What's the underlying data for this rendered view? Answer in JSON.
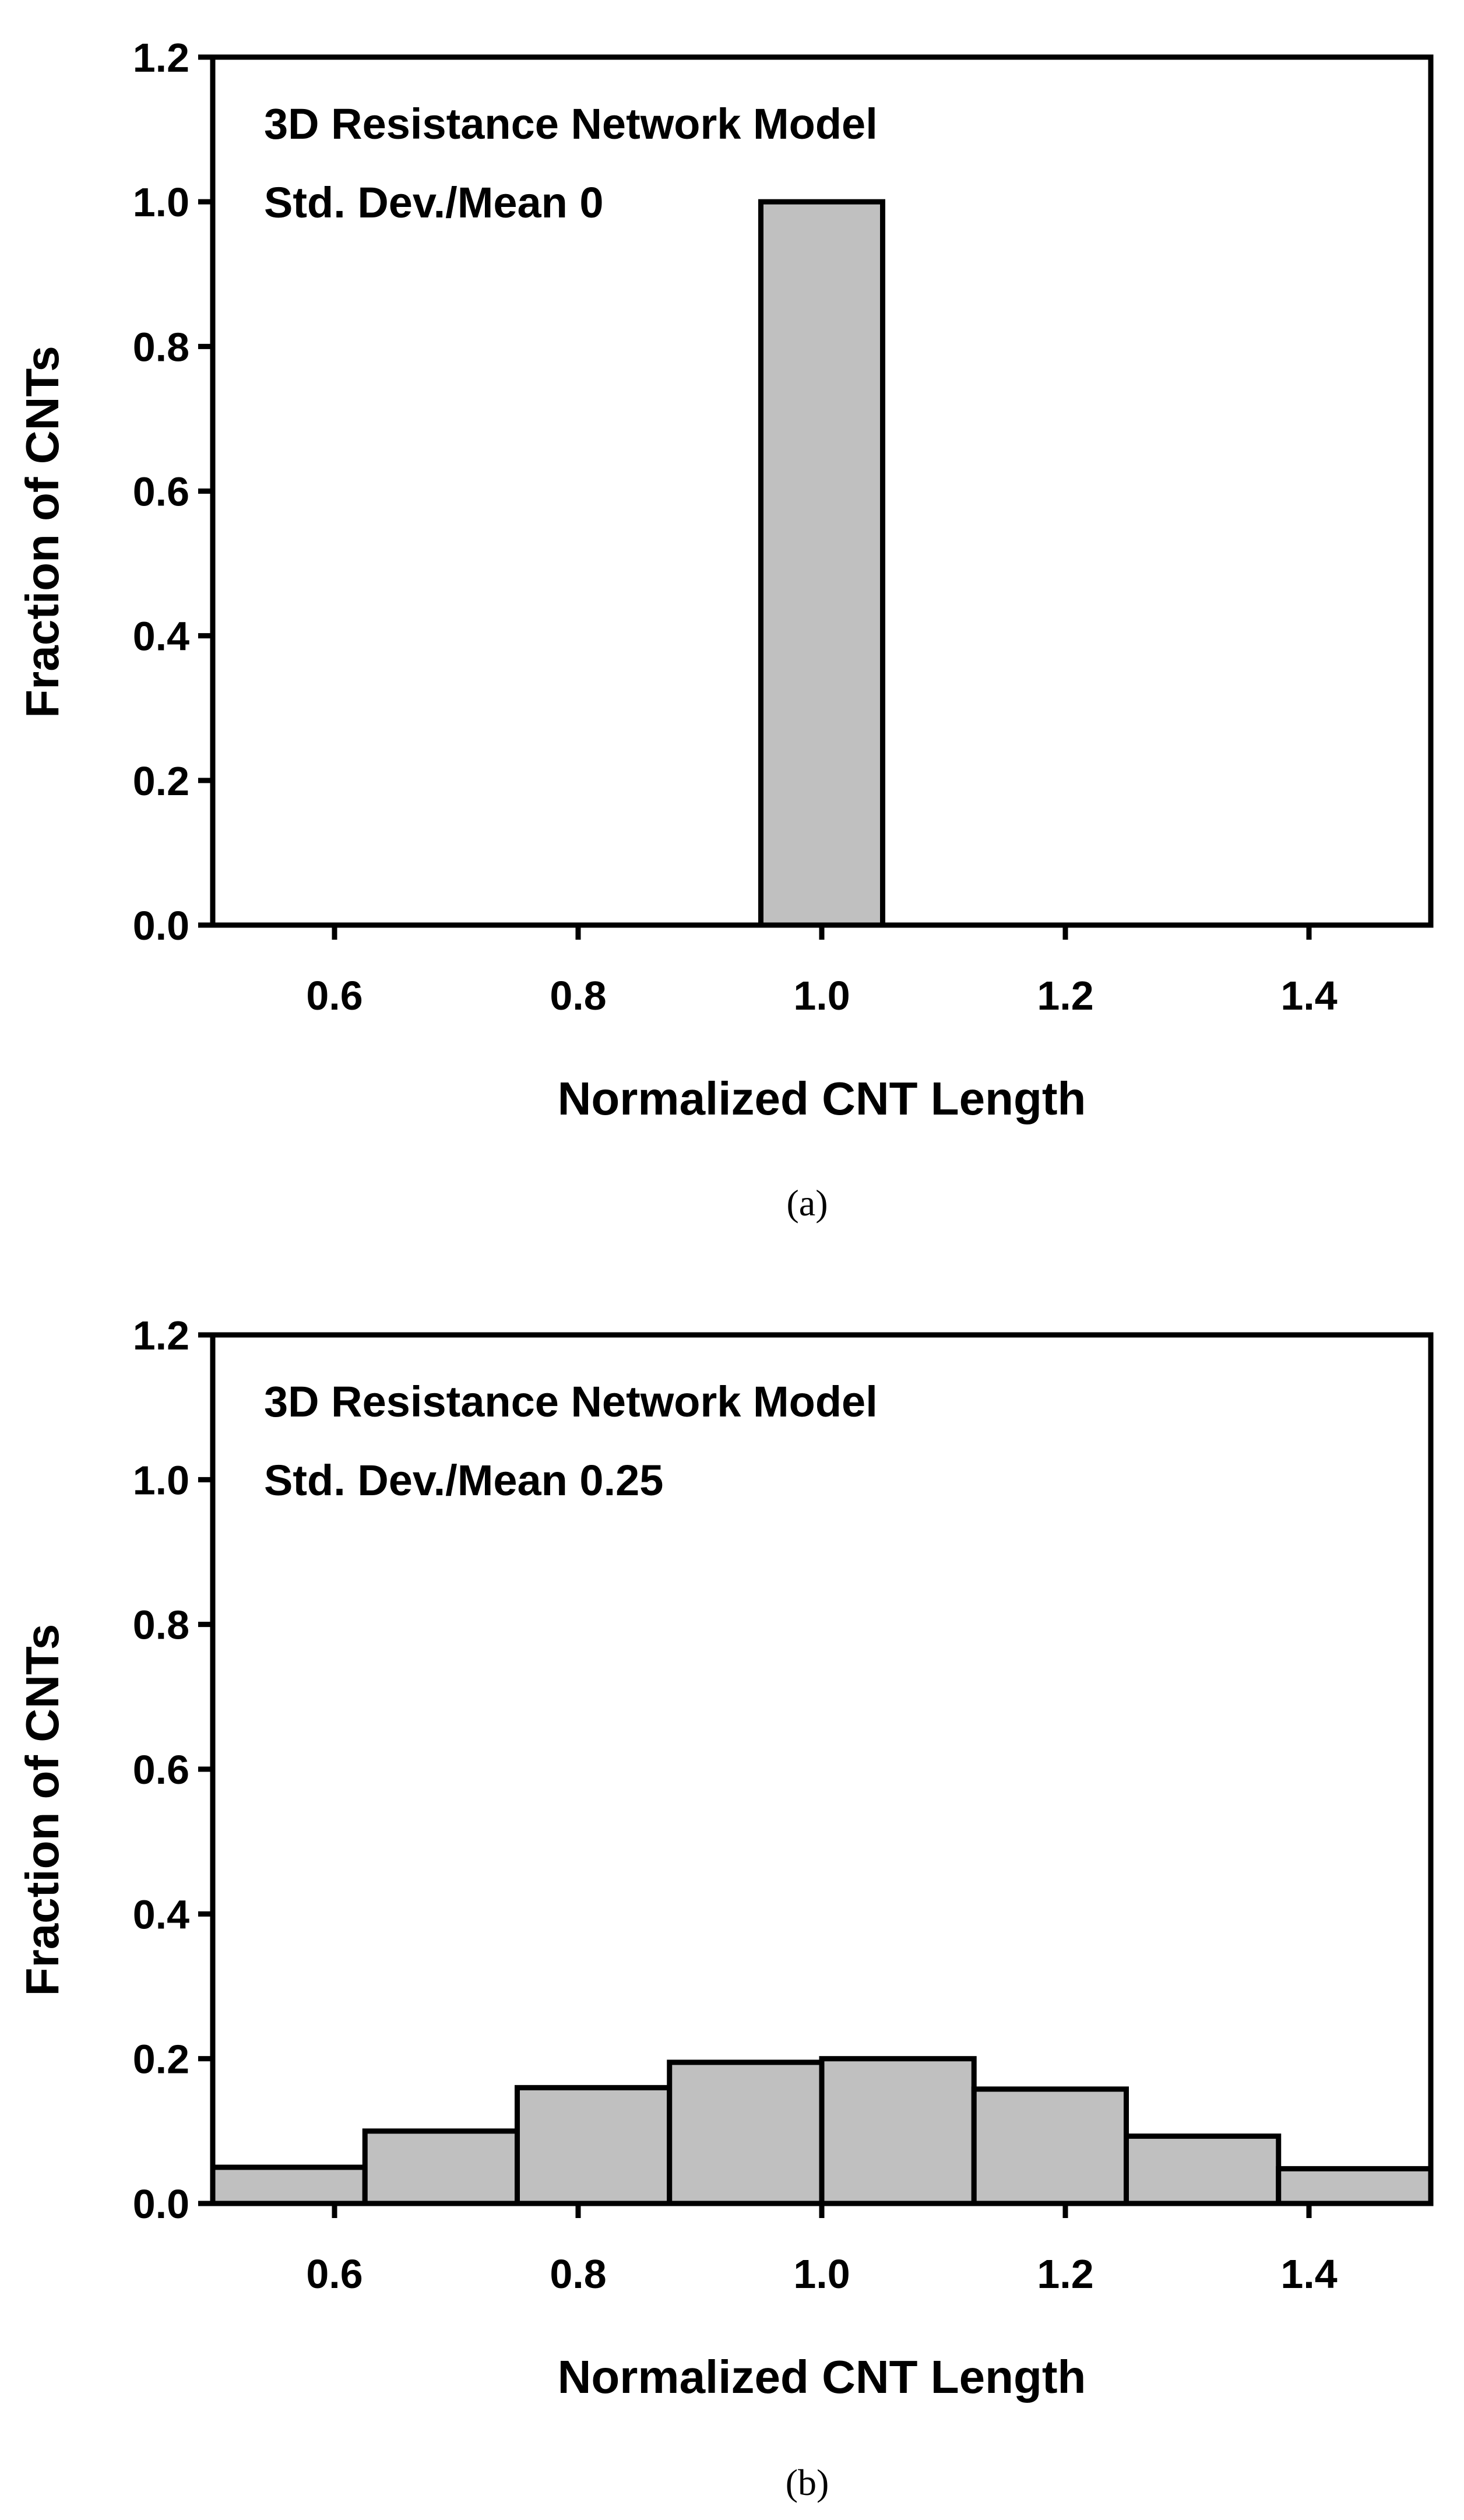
{
  "chart_data": [
    {
      "type": "bar",
      "caption": "(a)",
      "annotation_lines": [
        "3D Resistance Network Model",
        "Std. Dev./Mean 0"
      ],
      "xlabel": "Normalized CNT Length",
      "ylabel": "Fraction of CNTs",
      "xlim": [
        0.5,
        1.5
      ],
      "ylim": [
        0.0,
        1.2
      ],
      "xticks": [
        "0.6",
        "0.8",
        "1.0",
        "1.2",
        "1.4"
      ],
      "xtick_values": [
        0.6,
        0.8,
        1.0,
        1.2,
        1.4
      ],
      "yticks": [
        "0.0",
        "0.2",
        "0.4",
        "0.6",
        "0.8",
        "1.0",
        "1.2"
      ],
      "ytick_values": [
        0.0,
        0.2,
        0.4,
        0.6,
        0.8,
        1.0,
        1.2
      ],
      "grid": false,
      "bar_color": "#c0c0c0",
      "bins": [
        {
          "x0": 0.95,
          "x1": 1.05,
          "value": 1.0
        }
      ]
    },
    {
      "type": "bar",
      "caption": "(b)",
      "annotation_lines": [
        "3D Resistance Network Model",
        "Std. Dev./Mean 0.25"
      ],
      "xlabel": "Normalized CNT Length",
      "ylabel": "Fraction of CNTs",
      "xlim": [
        0.5,
        1.5
      ],
      "ylim": [
        0.0,
        1.2
      ],
      "xticks": [
        "0.6",
        "0.8",
        "1.0",
        "1.2",
        "1.4"
      ],
      "xtick_values": [
        0.6,
        0.8,
        1.0,
        1.2,
        1.4
      ],
      "yticks": [
        "0.0",
        "0.2",
        "0.4",
        "0.6",
        "0.8",
        "1.0",
        "1.2"
      ],
      "ytick_values": [
        0.0,
        0.2,
        0.4,
        0.6,
        0.8,
        1.0,
        1.2
      ],
      "grid": false,
      "bar_color": "#c0c0c0",
      "bins": [
        {
          "x0": 0.5,
          "x1": 0.625,
          "value": 0.05
        },
        {
          "x0": 0.625,
          "x1": 0.75,
          "value": 0.1
        },
        {
          "x0": 0.75,
          "x1": 0.875,
          "value": 0.16
        },
        {
          "x0": 0.875,
          "x1": 1.0,
          "value": 0.195
        },
        {
          "x0": 1.0,
          "x1": 1.125,
          "value": 0.2
        },
        {
          "x0": 1.125,
          "x1": 1.25,
          "value": 0.158
        },
        {
          "x0": 1.25,
          "x1": 1.375,
          "value": 0.093
        },
        {
          "x0": 1.375,
          "x1": 1.5,
          "value": 0.048
        }
      ]
    }
  ]
}
